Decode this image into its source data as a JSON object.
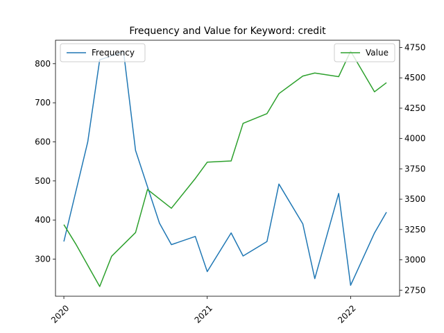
{
  "chart_data": {
    "type": "line",
    "title": "Frequency and Value for Keyword: credit",
    "xlabel": "",
    "x_ticks": [
      "2020",
      "2021",
      "2022"
    ],
    "x": [
      "2020-01",
      "2020-02",
      "2020-03",
      "2020-04",
      "2020-05",
      "2020-06",
      "2020-07",
      "2020-08",
      "2020-09",
      "2020-10",
      "2020-11",
      "2020-12",
      "2021-01",
      "2021-02",
      "2021-03",
      "2021-04",
      "2021-05",
      "2021-06",
      "2021-07",
      "2021-08",
      "2021-09",
      "2021-10",
      "2021-11",
      "2021-12",
      "2022-01",
      "2022-02",
      "2022-03",
      "2022-04"
    ],
    "grid": false,
    "y_left": {
      "label": "",
      "ticks": [
        300,
        400,
        500,
        600,
        700,
        800
      ],
      "range": [
        205,
        860
      ]
    },
    "y_right": {
      "label": "",
      "ticks": [
        2750,
        3000,
        3250,
        3500,
        3750,
        4000,
        4250,
        4500,
        4750
      ],
      "range": [
        2700,
        4810
      ]
    },
    "series": [
      {
        "name": "Frequency",
        "axis": "left",
        "color": "#1f77b4",
        "legend": "top-left",
        "points": [
          [
            "2020-01",
            345
          ],
          [
            "2020-03",
            600
          ],
          [
            "2020-04",
            810
          ],
          [
            "2020-06",
            830
          ],
          [
            "2020-07",
            578
          ],
          [
            "2020-09",
            392
          ],
          [
            "2020-10",
            337
          ],
          [
            "2020-12",
            358
          ],
          [
            "2021-01",
            268
          ],
          [
            "2021-03",
            367
          ],
          [
            "2021-04",
            308
          ],
          [
            "2021-06",
            345
          ],
          [
            "2021-07",
            492
          ],
          [
            "2021-09",
            390
          ],
          [
            "2021-10",
            250
          ],
          [
            "2021-12",
            468
          ],
          [
            "2022-01",
            233
          ],
          [
            "2022-03",
            367
          ],
          [
            "2022-04",
            420
          ]
        ]
      },
      {
        "name": "Value",
        "axis": "right",
        "color": "#2ca02c",
        "legend": "top-right",
        "points": [
          [
            "2020-01",
            3290
          ],
          [
            "2020-02",
            3130
          ],
          [
            "2020-04",
            2780
          ],
          [
            "2020-05",
            3030
          ],
          [
            "2020-07",
            3225
          ],
          [
            "2020-08",
            3580
          ],
          [
            "2020-10",
            3425
          ],
          [
            "2020-12",
            3670
          ],
          [
            "2021-01",
            3805
          ],
          [
            "2021-03",
            3815
          ],
          [
            "2021-04",
            4125
          ],
          [
            "2021-06",
            4205
          ],
          [
            "2021-07",
            4370
          ],
          [
            "2021-09",
            4515
          ],
          [
            "2021-10",
            4540
          ],
          [
            "2021-12",
            4510
          ],
          [
            "2022-01",
            4720
          ],
          [
            "2022-03",
            4385
          ],
          [
            "2022-04",
            4460
          ]
        ]
      }
    ]
  }
}
